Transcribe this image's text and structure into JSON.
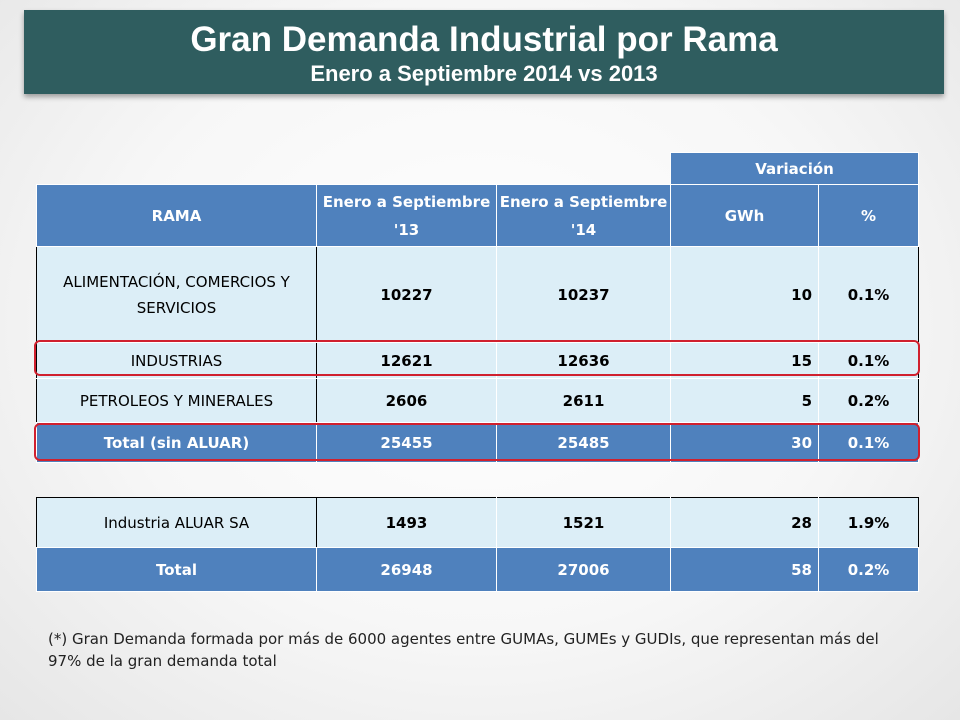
{
  "title": "Gran Demanda Industrial por Rama",
  "subtitle": "Enero a Septiembre 2014 vs 2013",
  "table_header": {
    "variacion": "Variación",
    "rama": "RAMA",
    "col_2013": "Enero a Septiembre '13",
    "col_2014": "Enero a Septiembre '14",
    "gwh": "GWh",
    "pct": "%"
  },
  "rows": [
    {
      "rama": "ALIMENTACIÓN, COMERCIOS Y SERVICIOS",
      "v2013": "10227",
      "v2014": "10237",
      "gwh": "10",
      "pct": "0.1%"
    },
    {
      "rama": "INDUSTRIAS",
      "v2013": "12621",
      "v2014": "12636",
      "gwh": "15",
      "pct": "0.1%"
    },
    {
      "rama": "PETROLEOS Y MINERALES",
      "v2013": "2606",
      "v2014": "2611",
      "gwh": "5",
      "pct": "0.2%"
    }
  ],
  "subtotal": {
    "rama": "Total (sin ALUAR)",
    "v2013": "25455",
    "v2014": "25485",
    "gwh": "30",
    "pct": "0.1%"
  },
  "aluar": {
    "rama": "Industria ALUAR SA",
    "v2013": "1493",
    "v2014": "1521",
    "gwh": "28",
    "pct": "1.9%"
  },
  "total": {
    "rama": "Total",
    "v2013": "26948",
    "v2014": "27006",
    "gwh": "58",
    "pct": "0.2%"
  },
  "note": "(*) Gran Demanda formada por más de 6000 agentes entre GUMAs, GUMEs y GUDIs, que representan más del 97% de la gran demanda total",
  "colors": {
    "title_bg": "#2f5d5f",
    "header_bg": "#4f81bd",
    "row_bg": "#dceef7",
    "highlight": "#d0202e"
  }
}
